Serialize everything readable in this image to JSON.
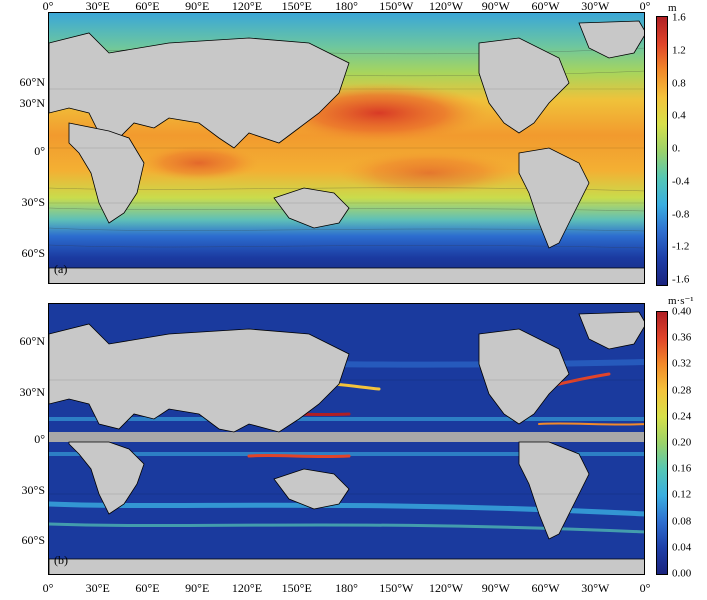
{
  "longitude_labels": [
    "0°",
    "30°E",
    "60°E",
    "90°E",
    "120°E",
    "150°E",
    "180°",
    "150°W",
    "120°W",
    "90°W",
    "60°W",
    "30°W",
    "0°"
  ],
  "latitude_labels_a": [
    "60°N",
    "30°N",
    "0°",
    "30°S",
    "60°S"
  ],
  "latitude_labels_b": [
    "60°N",
    "30°N",
    "0°",
    "30°S",
    "60°S"
  ],
  "panel_a": {
    "label": "(a)",
    "unit": "m",
    "colorbar_ticks": [
      "1.6",
      "1.2",
      "0.8",
      "0.4",
      "0.",
      "-0.4",
      "-0.8",
      "-1.2",
      "-1.6"
    ],
    "colorbar_range": [
      -1.6,
      1.6
    ]
  },
  "panel_b": {
    "label": "(b)",
    "unit": "m·s⁻¹",
    "colorbar_ticks": [
      "0.40",
      "0.36",
      "0.32",
      "0.28",
      "0.24",
      "0.20",
      "0.16",
      "0.12",
      "0.08",
      "0.04",
      "0.00"
    ],
    "colorbar_range": [
      0.0,
      0.4
    ]
  },
  "colors": {
    "land": "#c8c8c8",
    "equator_mask": "#a8a8a8",
    "ramp": [
      "#1a237e",
      "#1e3fa8",
      "#2f6fd0",
      "#3aaee0",
      "#56c7b4",
      "#9bd26a",
      "#d7e04a",
      "#f4c33c",
      "#f28a2a",
      "#e0442a",
      "#b01f24"
    ]
  }
}
